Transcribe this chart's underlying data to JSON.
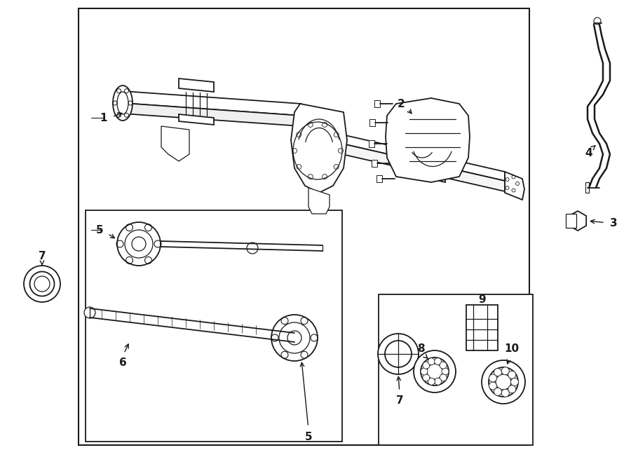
{
  "bg_color": "#ffffff",
  "line_color": "#1a1a1a",
  "label_color": "#000000",
  "fig_width": 9.0,
  "fig_height": 6.62,
  "dpi": 100
}
